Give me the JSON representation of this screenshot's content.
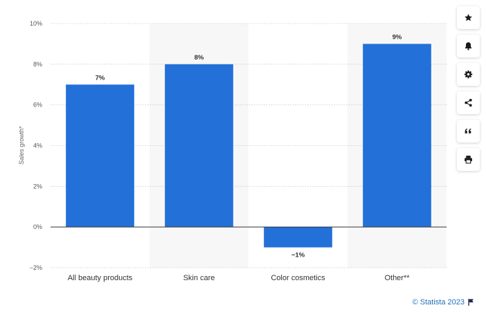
{
  "chart_data": {
    "type": "bar",
    "categories": [
      "All beauty products",
      "Skin care",
      "Color cosmetics",
      "Other**"
    ],
    "values": [
      7,
      8,
      -1,
      9
    ],
    "data_labels": [
      "7%",
      "8%",
      "−1%",
      "9%"
    ],
    "title": "",
    "xlabel": "",
    "ylabel": "Sales growth*",
    "ylim": [
      -2,
      10
    ],
    "yticks": [
      -2,
      0,
      2,
      4,
      6,
      8,
      10
    ],
    "ytick_labels": [
      "−2%",
      "0%",
      "2%",
      "4%",
      "6%",
      "8%",
      "10%"
    ],
    "grid": true,
    "bar_color": "#2370d8",
    "alternate_band_color": "#f7f7f7"
  },
  "toolbar": {
    "buttons": [
      {
        "name": "favorite-button",
        "icon": "star-icon"
      },
      {
        "name": "notification-button",
        "icon": "bell-icon"
      },
      {
        "name": "settings-button",
        "icon": "gear-icon"
      },
      {
        "name": "share-button",
        "icon": "share-icon"
      },
      {
        "name": "cite-button",
        "icon": "quote-icon"
      },
      {
        "name": "print-button",
        "icon": "printer-icon"
      }
    ]
  },
  "credit": {
    "text": "© Statista 2023",
    "color": "#1d6fb8",
    "icon": "flag-icon"
  }
}
